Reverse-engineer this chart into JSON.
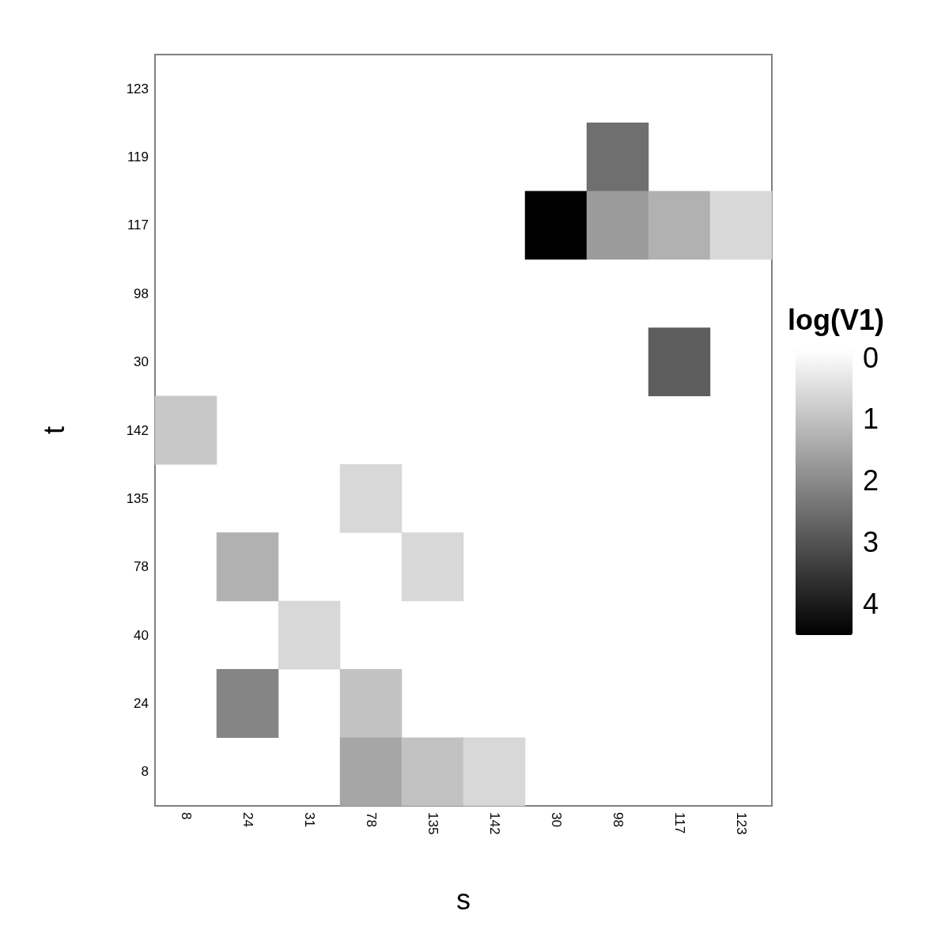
{
  "chart_data": {
    "type": "heatmap",
    "xlabel": "s",
    "ylabel": "t",
    "clabel": "log(V1)",
    "categories": [
      "8",
      "24",
      "31",
      "78",
      "135",
      "142",
      "30",
      "98",
      "117",
      "123"
    ],
    "y_categories": [
      "123",
      "119",
      "117",
      "98",
      "30",
      "142",
      "135",
      "78",
      "40",
      "24",
      "8"
    ],
    "cells": [
      [
        null,
        null,
        null,
        null,
        null,
        null,
        null,
        null,
        null,
        null
      ],
      [
        null,
        null,
        null,
        null,
        null,
        null,
        null,
        2.6,
        null,
        null
      ],
      [
        null,
        null,
        null,
        null,
        null,
        null,
        4.6,
        1.8,
        1.4,
        0.7
      ],
      [
        null,
        null,
        null,
        null,
        null,
        null,
        null,
        null,
        null,
        null
      ],
      [
        null,
        null,
        null,
        null,
        null,
        null,
        null,
        null,
        2.9,
        null
      ],
      [
        1.0,
        null,
        null,
        null,
        null,
        null,
        null,
        null,
        null,
        null
      ],
      [
        null,
        null,
        null,
        0.7,
        null,
        null,
        null,
        null,
        null,
        null
      ],
      [
        null,
        1.4,
        null,
        null,
        0.7,
        null,
        null,
        null,
        null,
        null
      ],
      [
        null,
        null,
        0.7,
        null,
        null,
        null,
        null,
        null,
        null,
        null
      ],
      [
        null,
        2.2,
        null,
        1.1,
        null,
        null,
        null,
        null,
        null,
        null
      ],
      [
        null,
        null,
        null,
        1.6,
        1.1,
        0.7,
        null,
        null,
        null,
        null
      ]
    ],
    "clim": [
      0,
      4.6
    ],
    "cticks": [
      0,
      1,
      2,
      3,
      4
    ]
  }
}
